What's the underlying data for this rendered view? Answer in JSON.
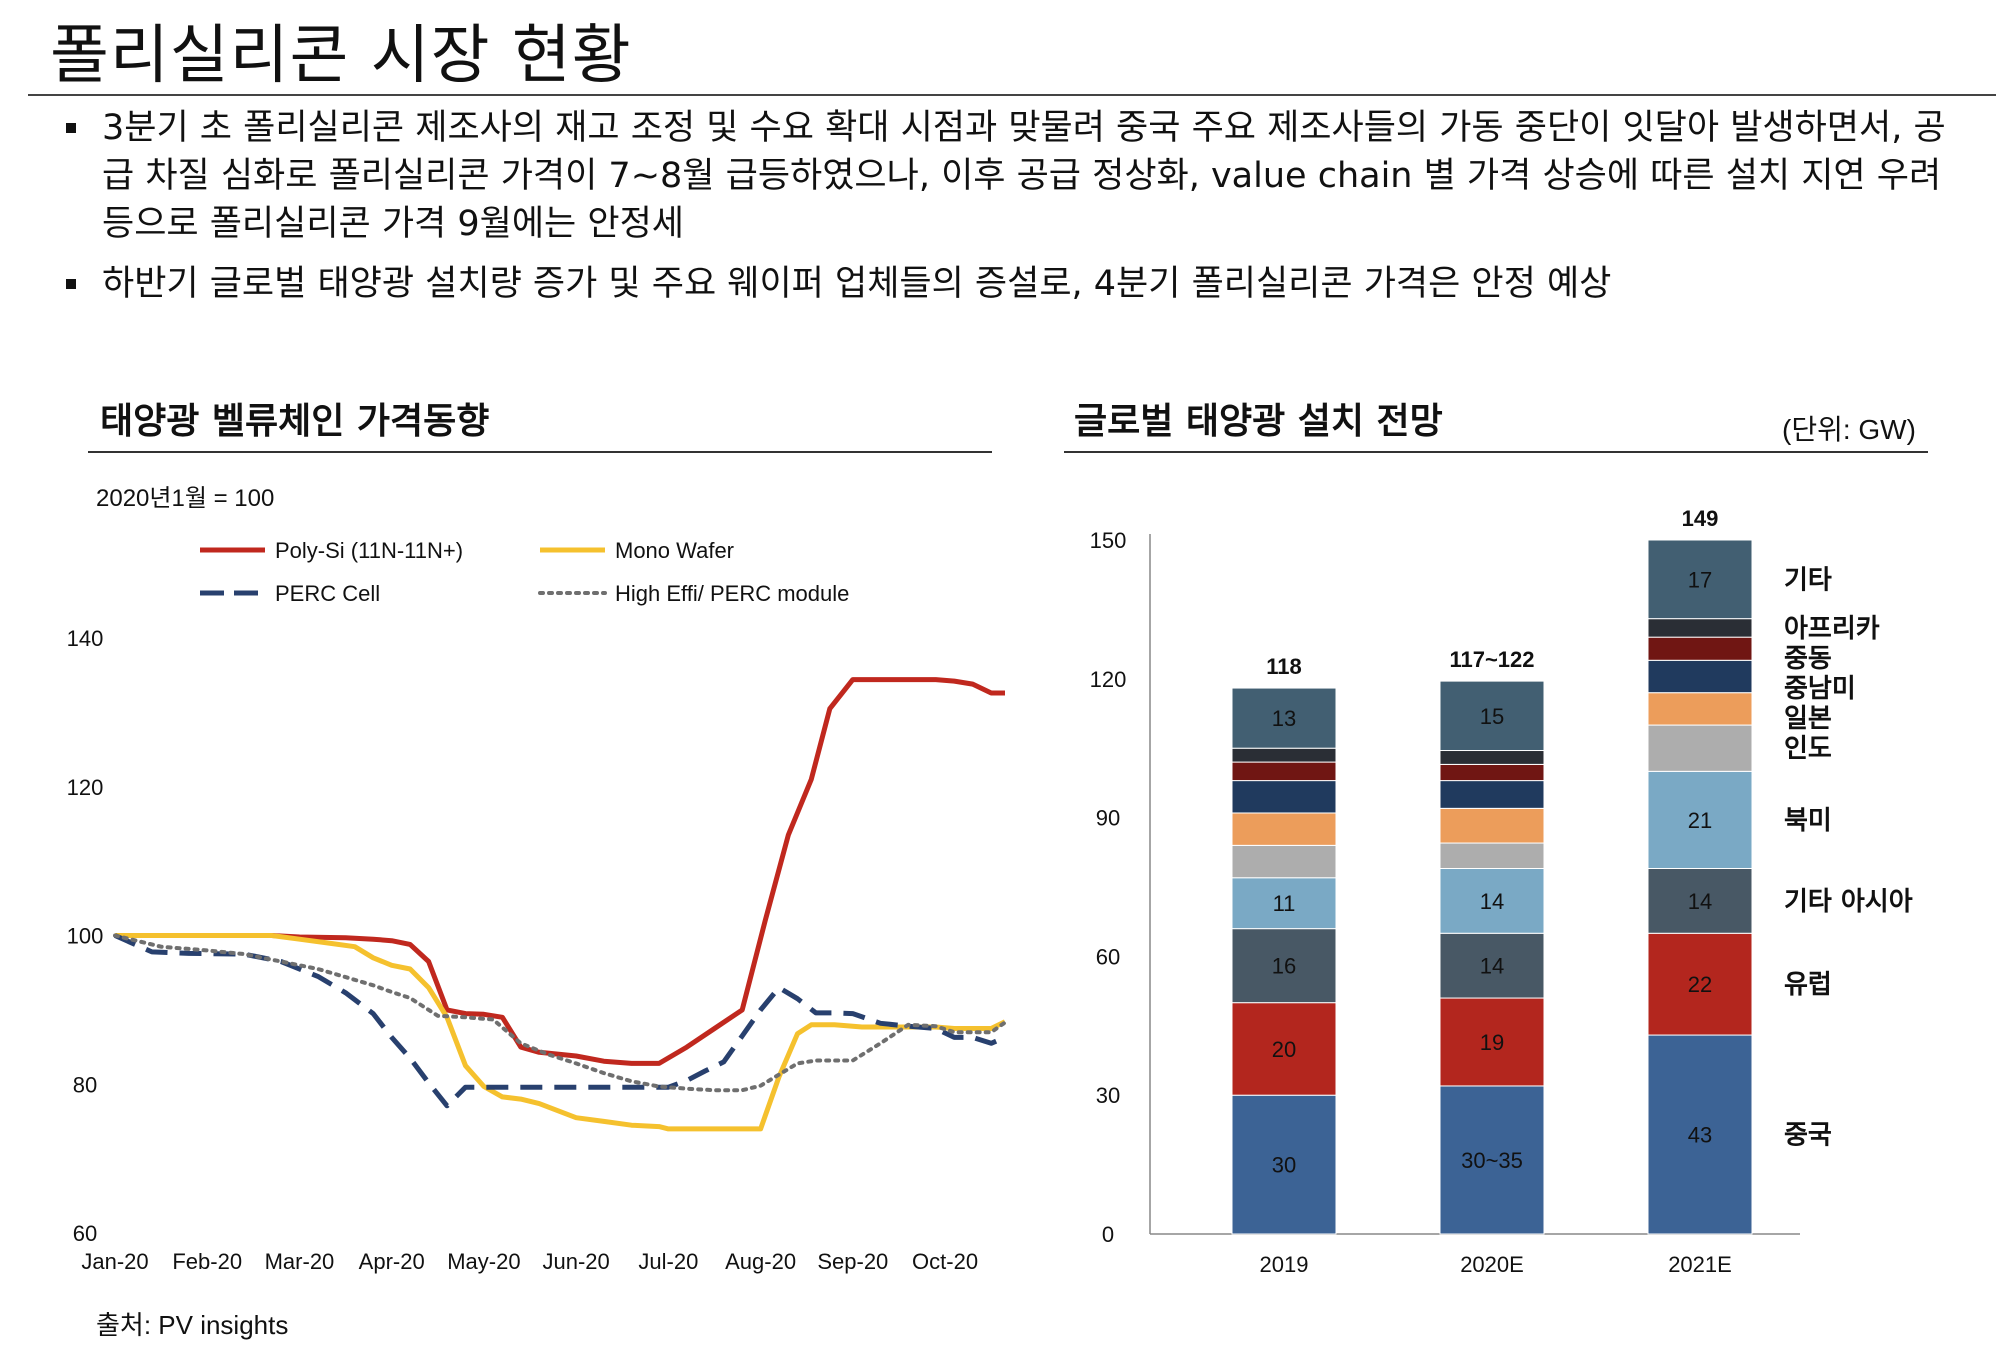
{
  "page": {
    "title": "폴리실리콘 시장 현황",
    "bullets": [
      "3분기 초 폴리실리콘 제조사의 재고 조정 및 수요 확대 시점과 맞물려 중국 주요 제조사들의 가동 중단이 잇달아 발생하면서, 공급 차질 심화로 폴리실리콘 가격이 7~8월 급등하였으나, 이후 공급 정상화, value chain 별 가격 상승에 따른 설치 지연 우려 등으로 폴리실리콘 가격 9월에는 안정세",
      "하반기 글로벌 태양광 설치량 증가 및 주요 웨이퍼 업체들의 증설로, 4분기 폴리실리콘 가격은 안정 예상"
    ],
    "source": "출처: PV insights"
  },
  "chart_data": [
    {
      "type": "line",
      "title": "태양광 벨류체인 가격동향",
      "subtitle": "2020년1월 = 100",
      "ylim": [
        60,
        140
      ],
      "yticks": [
        60,
        80,
        100,
        120,
        140
      ],
      "xlim": [
        0,
        9.65
      ],
      "xtick_labels": [
        "Jan-20",
        "Feb-20",
        "Mar-20",
        "Apr-20",
        "May-20",
        "Jun-20",
        "Jul-20",
        "Aug-20",
        "Sep-20",
        "Oct-20"
      ],
      "series": [
        {
          "name": "Poly-Si (11N-11N+)",
          "color": "#c0281e",
          "style": "solid",
          "x": [
            0,
            0.5,
            1,
            1.4,
            1.7,
            2,
            2.5,
            2.8,
            3,
            3.2,
            3.4,
            3.6,
            3.8,
            4,
            4.2,
            4.4,
            4.6,
            5,
            5.3,
            5.6,
            5.9,
            6.2,
            6.5,
            6.8,
            7.05,
            7.3,
            7.55,
            7.75,
            8,
            8.3,
            8.6,
            8.9,
            9.1,
            9.3,
            9.5,
            9.65
          ],
          "y": [
            100,
            100,
            100,
            100,
            100,
            99.8,
            99.7,
            99.5,
            99.3,
            98.8,
            96.5,
            90,
            89.5,
            89.4,
            89,
            85,
            84.3,
            83.8,
            83.1,
            82.8,
            82.8,
            85,
            87.5,
            90,
            102,
            113.5,
            121,
            130.5,
            134.4,
            134.4,
            134.4,
            134.4,
            134.2,
            133.8,
            132.6,
            132.6
          ]
        },
        {
          "name": "Mono Wafer",
          "color": "#f5c12e",
          "style": "solid",
          "x": [
            0,
            0.5,
            1,
            1.4,
            1.7,
            2,
            2.3,
            2.6,
            2.8,
            3,
            3.2,
            3.4,
            3.6,
            3.8,
            4,
            4.2,
            4.4,
            4.6,
            5,
            5.3,
            5.6,
            5.9,
            6,
            6.2,
            6.5,
            6.8,
            7,
            7.2,
            7.4,
            7.55,
            7.8,
            8.1,
            8.4,
            8.7,
            8.9,
            9.1,
            9.3,
            9.5,
            9.65
          ],
          "y": [
            100,
            100,
            100,
            100,
            100,
            99.5,
            99,
            98.5,
            97,
            96,
            95.5,
            93,
            89,
            82.5,
            79.7,
            78.3,
            78,
            77.4,
            75.5,
            75,
            74.5,
            74.3,
            74,
            74,
            74,
            74,
            74,
            81,
            86.8,
            88,
            88,
            87.7,
            87.7,
            87.7,
            87.7,
            87.5,
            87.5,
            87.5,
            88.4
          ]
        },
        {
          "name": "PERC Cell",
          "color": "#28406e",
          "style": "dashed",
          "x": [
            0,
            0.4,
            0.8,
            1.4,
            1.8,
            2.2,
            2.5,
            2.8,
            3,
            3.2,
            3.4,
            3.6,
            3.8,
            4,
            4.2,
            4.4,
            4.6,
            5,
            5.3,
            5.6,
            5.9,
            6,
            6.2,
            6.4,
            6.6,
            6.8,
            7,
            7.2,
            7.4,
            7.6,
            7.8,
            8,
            8.3,
            8.6,
            8.9,
            9.1,
            9.3,
            9.5,
            9.65
          ],
          "y": [
            100,
            97.8,
            97.6,
            97.5,
            96.5,
            94.5,
            92.3,
            89.5,
            86.3,
            83.5,
            80.2,
            77.1,
            79.6,
            79.6,
            79.6,
            79.6,
            79.6,
            79.6,
            79.6,
            79.6,
            79.6,
            79.6,
            80.5,
            81.8,
            83,
            86.5,
            90,
            93,
            91.5,
            89.6,
            89.6,
            89.5,
            88.2,
            87.8,
            87.5,
            86.3,
            86.3,
            85.5,
            86.3
          ]
        },
        {
          "name": "High Effi/ PERC module",
          "color": "#6f6f6f",
          "style": "dotted",
          "x": [
            0,
            0.5,
            1,
            1.4,
            1.8,
            2.2,
            2.5,
            2.8,
            3,
            3.2,
            3.5,
            3.8,
            4.1,
            4.4,
            4.7,
            5,
            5.3,
            5.6,
            5.9,
            6.2,
            6.5,
            6.8,
            7,
            7.2,
            7.4,
            7.6,
            7.8,
            8,
            8.3,
            8.6,
            8.9,
            9.1,
            9.3,
            9.5,
            9.65
          ],
          "y": [
            100,
            98.5,
            98,
            97.5,
            96.5,
            95.5,
            94.4,
            93.3,
            92.4,
            91.6,
            89.2,
            89,
            88.7,
            85.5,
            84,
            82.8,
            81.5,
            80.4,
            79.7,
            79.4,
            79.2,
            79.2,
            79.8,
            81.3,
            82.8,
            83.2,
            83.2,
            83.2,
            85.5,
            88,
            87.8,
            87,
            87,
            87,
            88.3
          ]
        }
      ]
    },
    {
      "type": "bar",
      "stacked": true,
      "title": "글로벌 태양광 설치 전망",
      "unit": "(단위: GW)",
      "ylim": [
        0,
        150
      ],
      "yticks": [
        0,
        30,
        60,
        90,
        120,
        150
      ],
      "categories": [
        "2019",
        "2020E",
        "2021E"
      ],
      "totals": [
        "118",
        "117~122",
        "149"
      ],
      "series": [
        {
          "name": "중국",
          "color": "#3c6395",
          "values": [
            30,
            32,
            43
          ],
          "labels": [
            "30",
            "30~35",
            "43"
          ]
        },
        {
          "name": "유럽",
          "color": "#b3261e",
          "values": [
            20,
            19,
            22
          ],
          "labels": [
            "20",
            "19",
            "22"
          ]
        },
        {
          "name": "기타 아시아",
          "color": "#485865",
          "values": [
            16,
            14,
            14
          ],
          "labels": [
            "16",
            "14",
            "14"
          ]
        },
        {
          "name": "북미",
          "color": "#7aa9c5",
          "values": [
            11,
            14,
            21
          ],
          "labels": [
            "11",
            "14",
            "21"
          ]
        },
        {
          "name": "인도",
          "color": "#adadad",
          "values": [
            7,
            5.5,
            10
          ],
          "labels": [
            "",
            "",
            ""
          ]
        },
        {
          "name": "일본",
          "color": "#ec9d5b",
          "values": [
            7,
            7.5,
            7
          ],
          "labels": [
            "",
            "",
            ""
          ]
        },
        {
          "name": "중남미",
          "color": "#203a5e",
          "values": [
            7,
            6,
            7
          ],
          "labels": [
            "",
            "",
            ""
          ]
        },
        {
          "name": "중동",
          "color": "#701613",
          "values": [
            4,
            3.5,
            5
          ],
          "labels": [
            "",
            "",
            ""
          ]
        },
        {
          "name": "아프리카",
          "color": "#2a2e35",
          "values": [
            3,
            3,
            4
          ],
          "labels": [
            "",
            "",
            ""
          ]
        },
        {
          "name": "기타",
          "color": "#425f72",
          "values": [
            13,
            15,
            17
          ],
          "labels": [
            "13",
            "15",
            "17"
          ]
        }
      ]
    }
  ]
}
